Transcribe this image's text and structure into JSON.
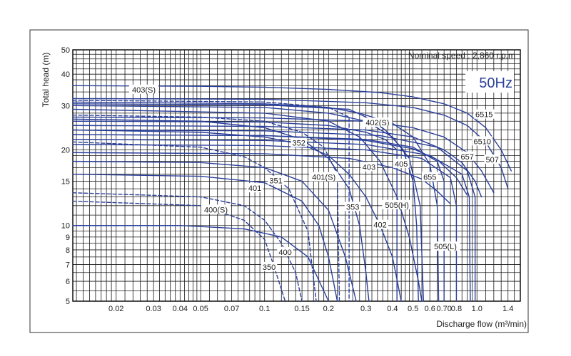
{
  "chart_data": {
    "type": "line",
    "xlabel": "Discharge flow (m³/min)",
    "ylabel": "Total head (m)",
    "annotation": "Nominal speed : 2,860 r.p.m",
    "badge": "50Hz",
    "x_scale": "log",
    "y_scale": "log",
    "xlim": [
      0.0125,
      1.6
    ],
    "ylim": [
      5,
      50
    ],
    "x_ticks": [
      {
        "value": 0.02,
        "label": "0.02"
      },
      {
        "value": 0.03,
        "label": "0.03"
      },
      {
        "value": 0.04,
        "label": "0.04"
      },
      {
        "value": 0.05,
        "label": "0.05"
      },
      {
        "value": 0.07,
        "label": "0.07"
      },
      {
        "value": 0.1,
        "label": "0.1"
      },
      {
        "value": 0.15,
        "label": "0.15"
      },
      {
        "value": 0.2,
        "label": "0.2"
      },
      {
        "value": 0.3,
        "label": "0.3"
      },
      {
        "value": 0.4,
        "label": "0.4"
      },
      {
        "value": 0.5,
        "label": "0.5"
      },
      {
        "value": 0.6,
        "label": "0.6"
      },
      {
        "value": 0.7,
        "label": "0.70"
      },
      {
        "value": 0.8,
        "label": "0.8"
      },
      {
        "value": 1.0,
        "label": "1.0"
      },
      {
        "value": 1.4,
        "label": "1.4"
      }
    ],
    "y_ticks": [
      {
        "value": 5,
        "label": "5"
      },
      {
        "value": 6,
        "label": "6"
      },
      {
        "value": 7,
        "label": "7"
      },
      {
        "value": 8,
        "label": "8"
      },
      {
        "value": 9,
        "label": "9"
      },
      {
        "value": 10,
        "label": "10"
      },
      {
        "value": 15,
        "label": "15"
      },
      {
        "value": 20,
        "label": "20"
      },
      {
        "value": 30,
        "label": "30"
      },
      {
        "value": 40,
        "label": "40"
      },
      {
        "value": 50,
        "label": "50"
      }
    ],
    "x_grid": [
      0.013,
      0.014,
      0.015,
      0.016,
      0.017,
      0.018,
      0.019,
      0.02,
      0.022,
      0.024,
      0.026,
      0.028,
      0.03,
      0.032,
      0.034,
      0.036,
      0.038,
      0.04,
      0.042,
      0.044,
      0.046,
      0.048,
      0.05,
      0.055,
      0.06,
      0.065,
      0.07,
      0.075,
      0.08,
      0.085,
      0.09,
      0.095,
      0.1,
      0.11,
      0.12,
      0.13,
      0.14,
      0.15,
      0.16,
      0.17,
      0.18,
      0.19,
      0.2,
      0.22,
      0.24,
      0.26,
      0.28,
      0.3,
      0.32,
      0.34,
      0.36,
      0.38,
      0.4,
      0.42,
      0.44,
      0.46,
      0.48,
      0.5,
      0.55,
      0.6,
      0.65,
      0.7,
      0.75,
      0.8,
      0.85,
      0.9,
      0.95,
      1.0,
      1.1,
      1.2,
      1.3,
      1.4,
      1.5
    ],
    "y_grid": [
      5,
      5.5,
      6,
      6.5,
      7,
      7.5,
      8,
      8.5,
      9,
      9.5,
      10,
      11,
      12,
      13,
      14,
      15,
      16,
      17,
      18,
      19,
      20,
      22,
      24,
      26,
      28,
      30,
      32,
      34,
      36,
      38,
      40,
      42,
      44,
      46,
      48,
      50
    ],
    "series": [
      {
        "name": "403(S)",
        "style": "solid",
        "label_at": [
          0.027,
          34.5
        ],
        "points": [
          [
            0.0125,
            36
          ],
          [
            0.05,
            35.8
          ],
          [
            0.1,
            35.5
          ],
          [
            0.2,
            34.8
          ],
          [
            0.35,
            33.8
          ],
          [
            0.5,
            32.5
          ],
          [
            0.7,
            30.5
          ],
          [
            0.9,
            28
          ],
          [
            1.1,
            24.5
          ],
          [
            1.3,
            20
          ],
          [
            1.45,
            16.5
          ]
        ]
      },
      {
        "name": "6515",
        "style": "solid",
        "label_at": [
          1.08,
          27.5
        ],
        "points": [
          [
            0.0125,
            32
          ],
          [
            0.1,
            31.8
          ],
          [
            0.3,
            30.8
          ],
          [
            0.5,
            29.5
          ],
          [
            0.7,
            27.5
          ],
          [
            0.9,
            25
          ],
          [
            1.1,
            21.5
          ],
          [
            1.3,
            17
          ],
          [
            1.4,
            14
          ]
        ]
      },
      {
        "name": "6510",
        "style": "solid",
        "label_at": [
          1.06,
          21.5
        ],
        "points": [
          [
            0.0125,
            27
          ],
          [
            0.1,
            26.8
          ],
          [
            0.3,
            26
          ],
          [
            0.5,
            24.5
          ],
          [
            0.7,
            22.5
          ],
          [
            0.9,
            19.5
          ],
          [
            1.05,
            16.5
          ],
          [
            1.2,
            13.5
          ]
        ]
      },
      {
        "name": "507",
        "style": "solid",
        "label_at": [
          1.18,
          18.2
        ],
        "points": [
          [
            0.0125,
            25
          ],
          [
            0.1,
            24.8
          ],
          [
            0.3,
            24
          ],
          [
            0.5,
            22.5
          ],
          [
            0.7,
            20
          ],
          [
            0.85,
            17.8
          ],
          [
            0.98,
            15
          ],
          [
            1.05,
            13
          ]
        ]
      },
      {
        "name": "657",
        "style": "solid",
        "label_at": [
          0.9,
          18.7
        ],
        "points": [
          [
            0.0125,
            23
          ],
          [
            0.1,
            22.8
          ],
          [
            0.3,
            21.8
          ],
          [
            0.5,
            20.2
          ],
          [
            0.65,
            18.3
          ],
          [
            0.8,
            15.5
          ],
          [
            0.9,
            13.2
          ]
        ]
      },
      {
        "name": "655",
        "style": "solid",
        "label_at": [
          0.6,
          15.5
        ],
        "points": [
          [
            0.0125,
            19.5
          ],
          [
            0.1,
            19.3
          ],
          [
            0.25,
            18.5
          ],
          [
            0.4,
            17
          ],
          [
            0.55,
            15.3
          ],
          [
            0.65,
            13.7
          ],
          [
            0.75,
            12.2
          ]
        ]
      },
      {
        "name": "505(H)",
        "style": "solid",
        "label_at": [
          0.42,
          12
        ],
        "points": [
          [
            0.0125,
            26
          ],
          [
            0.1,
            25.8
          ],
          [
            0.2,
            25
          ],
          [
            0.3,
            23.5
          ],
          [
            0.37,
            22
          ],
          [
            0.42,
            20
          ],
          [
            0.42,
            5
          ]
        ]
      },
      {
        "name": "405",
        "style": "solid",
        "label_at": [
          0.44,
          17.5
        ],
        "points": [
          [
            0.0125,
            30
          ],
          [
            0.1,
            29.5
          ],
          [
            0.2,
            28
          ],
          [
            0.3,
            26
          ],
          [
            0.4,
            22.5
          ],
          [
            0.48,
            18.5
          ],
          [
            0.54,
            12
          ],
          [
            0.56,
            5
          ]
        ]
      },
      {
        "name": "402(S)",
        "style": "solid",
        "label_at": [
          0.34,
          25.5
        ],
        "points": [
          [
            0.0125,
            31
          ],
          [
            0.1,
            30.5
          ],
          [
            0.2,
            29.5
          ],
          [
            0.28,
            28
          ],
          [
            0.4,
            25.5
          ],
          [
            0.5,
            22.5
          ],
          [
            0.6,
            17.5
          ],
          [
            0.65,
            12
          ],
          [
            0.66,
            5
          ]
        ]
      },
      {
        "name": "403",
        "style": "solid",
        "label_at": [
          0.31,
          17
        ],
        "points": [
          [
            0.0125,
            29
          ],
          [
            0.1,
            28
          ],
          [
            0.2,
            26
          ],
          [
            0.28,
            22.5
          ],
          [
            0.35,
            18
          ],
          [
            0.42,
            13
          ],
          [
            0.48,
            9
          ],
          [
            0.53,
            6
          ],
          [
            0.55,
            5
          ]
        ]
      },
      {
        "name": "402",
        "style": "solid",
        "label_at": [
          0.35,
          10
        ],
        "points": [
          [
            0.0125,
            24
          ],
          [
            0.05,
            23.5
          ],
          [
            0.1,
            22.5
          ],
          [
            0.15,
            21
          ],
          [
            0.2,
            19
          ],
          [
            0.25,
            16
          ],
          [
            0.3,
            13
          ],
          [
            0.35,
            10
          ],
          [
            0.4,
            7.5
          ],
          [
            0.44,
            5
          ]
        ]
      },
      {
        "name": "353",
        "style": "dashed",
        "label_at": [
          0.26,
          11.8
        ],
        "points": [
          [
            0.0125,
            31.5
          ],
          [
            0.1,
            31
          ],
          [
            0.2,
            29.5
          ],
          [
            0.25,
            27
          ],
          [
            0.25,
            5
          ]
        ]
      },
      {
        "name": "352",
        "style": "dashed",
        "label_at": [
          0.145,
          21.2
        ],
        "points": [
          [
            0.0125,
            27.5
          ],
          [
            0.05,
            27
          ],
          [
            0.1,
            26
          ],
          [
            0.15,
            23.5
          ],
          [
            0.19,
            20.5
          ],
          [
            0.22,
            16
          ],
          [
            0.225,
            5
          ]
        ]
      },
      {
        "name": "401(S)",
        "style": "solid",
        "label_at": [
          0.19,
          15.5
        ],
        "points": [
          [
            0.0125,
            26.5
          ],
          [
            0.05,
            26
          ],
          [
            0.1,
            24.5
          ],
          [
            0.15,
            22
          ],
          [
            0.2,
            18.5
          ],
          [
            0.25,
            14
          ],
          [
            0.28,
            10
          ],
          [
            0.3,
            6.5
          ],
          [
            0.31,
            5
          ]
        ]
      },
      {
        "name": "351",
        "style": "dashed",
        "label_at": [
          0.113,
          15
        ],
        "points": [
          [
            0.0125,
            21.5
          ],
          [
            0.05,
            20.5
          ],
          [
            0.08,
            18.8
          ],
          [
            0.1,
            17
          ],
          [
            0.13,
            14
          ],
          [
            0.16,
            9.5
          ],
          [
            0.175,
            5
          ]
        ]
      },
      {
        "name": "401",
        "style": "solid",
        "label_at": [
          0.09,
          14
        ],
        "points": [
          [
            0.0125,
            18
          ],
          [
            0.05,
            17.8
          ],
          [
            0.1,
            17
          ],
          [
            0.15,
            15
          ],
          [
            0.2,
            11.5
          ],
          [
            0.24,
            7.5
          ],
          [
            0.27,
            5
          ]
        ]
      },
      {
        "name": "400(S)",
        "style": "dashed",
        "label_at": [
          0.059,
          11.5
        ],
        "points": [
          [
            0.0125,
            13.5
          ],
          [
            0.05,
            13
          ],
          [
            0.08,
            12
          ],
          [
            0.1,
            10.5
          ],
          [
            0.12,
            8.5
          ],
          [
            0.14,
            6.5
          ],
          [
            0.15,
            5
          ]
        ]
      },
      {
        "name": "400",
        "style": "solid",
        "label_at": [
          0.125,
          7.8
        ],
        "points": [
          [
            0.0125,
            16
          ],
          [
            0.05,
            15.7
          ],
          [
            0.1,
            14.8
          ],
          [
            0.15,
            12.5
          ],
          [
            0.18,
            10
          ],
          [
            0.2,
            7.5
          ],
          [
            0.22,
            5
          ]
        ]
      },
      {
        "name": "350",
        "style": "dashed",
        "label_at": [
          0.105,
          6.8
        ],
        "points": [
          [
            0.0125,
            12.5
          ],
          [
            0.05,
            12
          ],
          [
            0.08,
            10.5
          ],
          [
            0.1,
            8.8
          ],
          [
            0.11,
            7
          ],
          [
            0.125,
            5
          ]
        ]
      },
      {
        "name": "",
        "style": "solid",
        "points": [
          [
            0.0125,
            10
          ],
          [
            0.04,
            10
          ],
          [
            0.08,
            9.7
          ],
          [
            0.12,
            9
          ],
          [
            0.16,
            7.5
          ],
          [
            0.2,
            5
          ]
        ]
      },
      {
        "name": "505(L)",
        "style": "solid",
        "label_at": [
          0.71,
          8.2
        ],
        "points": [
          [
            0.0125,
            23
          ],
          [
            0.1,
            22.8
          ],
          [
            0.3,
            22
          ],
          [
            0.5,
            20.5
          ],
          [
            0.65,
            18
          ],
          [
            0.7,
            15
          ],
          [
            0.7,
            5
          ]
        ]
      },
      {
        "name": "",
        "style": "solid",
        "points": [
          [
            0.0125,
            21
          ],
          [
            0.1,
            20.8
          ],
          [
            0.3,
            20
          ],
          [
            0.55,
            18.5
          ],
          [
            0.75,
            15.5
          ],
          [
            0.8,
            12
          ],
          [
            0.8,
            5
          ]
        ]
      },
      {
        "name": "",
        "style": "solid",
        "points": [
          [
            0.0125,
            22
          ],
          [
            0.1,
            21.8
          ],
          [
            0.3,
            21
          ],
          [
            0.6,
            19
          ],
          [
            0.85,
            16
          ],
          [
            0.92,
            13
          ],
          [
            0.93,
            5
          ]
        ]
      },
      {
        "name": "",
        "style": "solid",
        "points": [
          [
            0.0125,
            24
          ],
          [
            0.1,
            23.8
          ],
          [
            0.35,
            22.8
          ],
          [
            0.65,
            20.5
          ],
          [
            0.9,
            16.5
          ],
          [
            0.98,
            13
          ],
          [
            0.98,
            5
          ]
        ]
      },
      {
        "name": "",
        "style": "solid",
        "points": [
          [
            0.0125,
            30.5
          ],
          [
            0.1,
            30.2
          ],
          [
            0.25,
            29
          ],
          [
            0.3,
            27
          ],
          [
            0.37,
            24
          ],
          [
            0.45,
            20
          ],
          [
            0.5,
            15
          ],
          [
            0.52,
            10
          ],
          [
            0.53,
            5
          ]
        ]
      }
    ]
  }
}
